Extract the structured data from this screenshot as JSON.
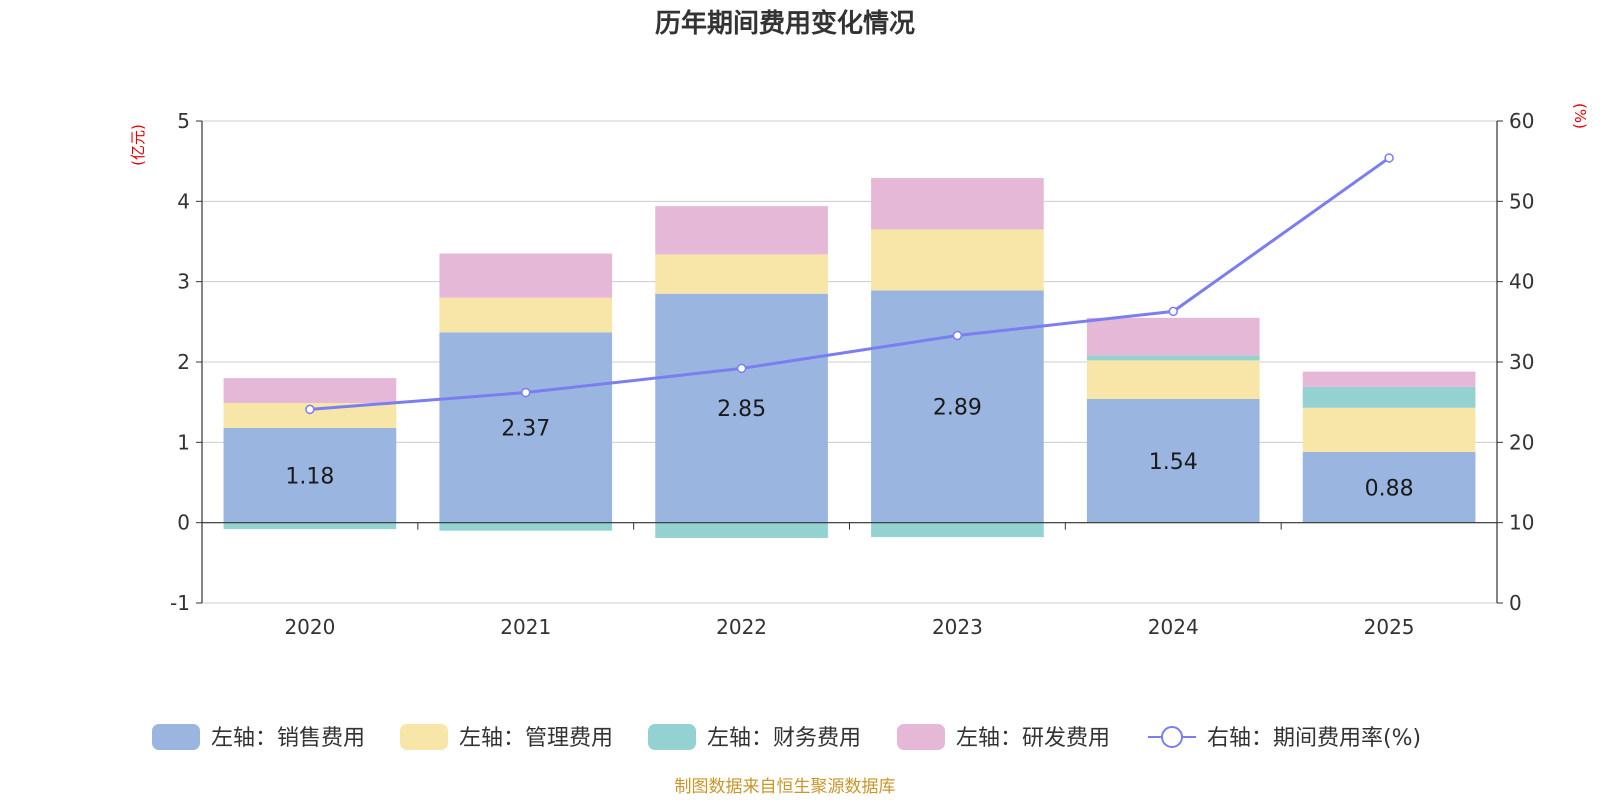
{
  "chart_data": {
    "type": "bar",
    "stacked": true,
    "title": "历年期间费用变化情况",
    "categories": [
      "2020",
      "2021",
      "2022",
      "2023",
      "2024",
      "2025"
    ],
    "series": [
      {
        "name": "左轴：销售费用",
        "axis": "left",
        "color": "#9ab6e0",
        "values": [
          1.18,
          2.37,
          2.85,
          2.89,
          1.54,
          0.88
        ],
        "labels": [
          "1.18",
          "2.37",
          "2.85",
          "2.89",
          "1.54",
          "0.88"
        ]
      },
      {
        "name": "左轴：管理费用",
        "axis": "left",
        "color": "#f8e6a8",
        "values": [
          0.31,
          0.43,
          0.49,
          0.76,
          0.48,
          0.55
        ]
      },
      {
        "name": "左轴：财务费用",
        "axis": "left",
        "color": "#94d2d2",
        "values": [
          -0.08,
          -0.1,
          -0.19,
          -0.18,
          0.06,
          0.26
        ]
      },
      {
        "name": "左轴：研发费用",
        "axis": "left",
        "color": "#e6b8d8",
        "values": [
          0.31,
          0.55,
          0.6,
          0.64,
          0.47,
          0.19
        ]
      },
      {
        "name": "右轴：期间费用率(%)",
        "axis": "right",
        "type": "line",
        "color": "#7b7ef0",
        "values": [
          24.1,
          26.2,
          29.2,
          33.3,
          36.3,
          55.4
        ]
      }
    ],
    "y_left": {
      "unit": "(亿元)",
      "ylim": [
        -1,
        5
      ],
      "ticks": [
        "-1",
        "0",
        "1",
        "2",
        "3",
        "4",
        "5"
      ]
    },
    "y_right": {
      "unit": "(%)",
      "ylim": [
        0,
        60
      ],
      "ticks": [
        "0",
        "10",
        "20",
        "30",
        "40",
        "50",
        "60"
      ]
    },
    "grid": true,
    "legend_position": "bottom",
    "source": "制图数据来自恒生聚源数据库"
  }
}
